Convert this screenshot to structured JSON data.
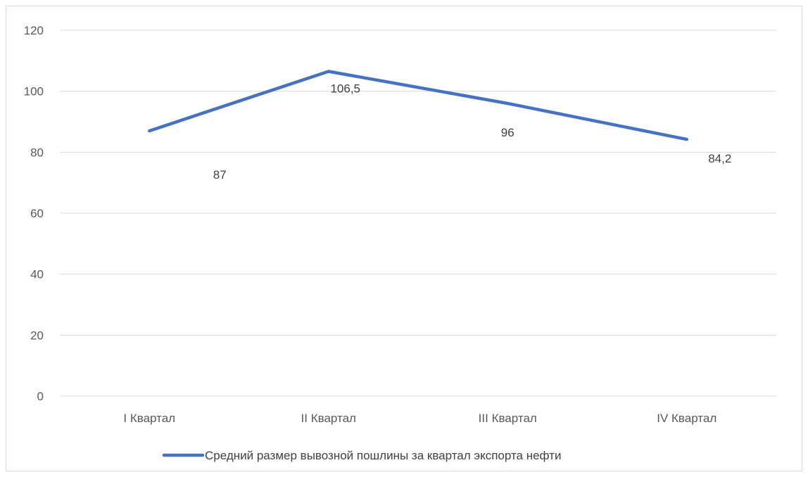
{
  "chart_data": {
    "type": "line",
    "title": "",
    "xlabel": "",
    "ylabel": "",
    "categories": [
      "I Квартал",
      "II Квартал",
      "III Квартал",
      "IV Квартал"
    ],
    "series": [
      {
        "name": "Средний размер вывозной пошлины за квартал экспорта нефти",
        "values": [
          87,
          106.5,
          96,
          84.2
        ],
        "data_labels": [
          "87",
          "106,5",
          "96",
          "84,2"
        ],
        "color": "#4472c4"
      }
    ],
    "ylim": [
      0,
      120
    ],
    "yticks": [
      0,
      20,
      40,
      60,
      80,
      100,
      120
    ],
    "grid": true,
    "legend_position": "bottom"
  }
}
